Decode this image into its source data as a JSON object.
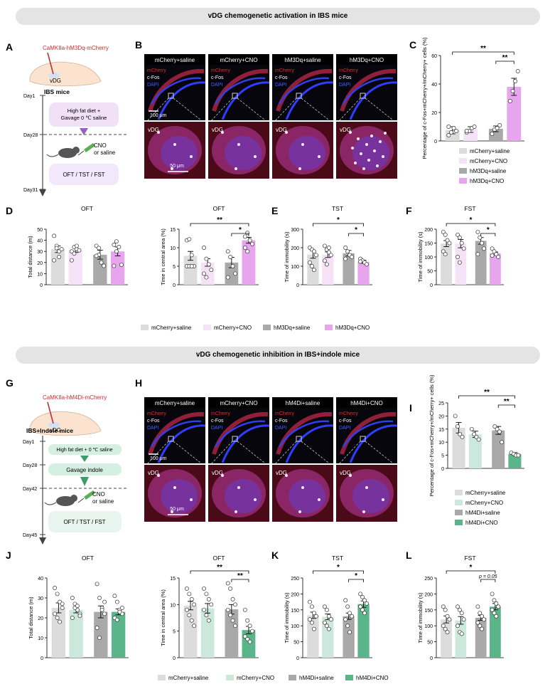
{
  "banners": {
    "top": "vDG chemogenetic activation in IBS mice",
    "bottom": "vDG chemogenetic inhibition in IBS+indole mice"
  },
  "panel_letters": [
    "A",
    "B",
    "C",
    "D",
    "E",
    "F",
    "G",
    "H",
    "I",
    "J",
    "K",
    "L"
  ],
  "colors": {
    "mcherry_saline": "#dcdcdc",
    "mcherry_cno_hm3": "#f6e2f7",
    "hm_saline": "#a9a9a9",
    "hm3dq_cno": "#e7a5ee",
    "mcherry_cno_hm4": "#cce8dc",
    "hm4di_cno": "#5bb58a",
    "virus_label": "#d12a2a",
    "mcherry_text": "#e02b2b",
    "dapi_text": "#3a66ff"
  },
  "schematic_A": {
    "virus": "CaMKIIa-hM3Dq-mCherry",
    "region": "vDG",
    "model": "IBS mice",
    "days": [
      "Day1",
      "Day28",
      "Day31"
    ],
    "step1": "High fat diet +\nGavage 0 ℃ saline",
    "injection": "CNO\nor saline",
    "tests": "OFT / TST / FST"
  },
  "schematic_G": {
    "virus": "CaMKIIa-hM4Di-mCherry",
    "region": "vDG",
    "model": "IBS+Indole mice",
    "days": [
      "Day1",
      "Day28",
      "Day42",
      "Day45"
    ],
    "step1": "High fat diet + 0 ℃ saline",
    "step2": "Gavage indole",
    "injection": "CNO\nor saline",
    "tests": "OFT / TST / FST"
  },
  "micrographs_B": {
    "titles": [
      "mCherry+saline",
      "mCherry+CNO",
      "hM3Dq+saline",
      "hM3Dq+CNO"
    ],
    "channels": [
      "mCherry",
      "c-Fos",
      "DAPI"
    ],
    "zoom_label": "vDG",
    "scale_top": "100 μm",
    "scale_bottom": "50 μm"
  },
  "micrographs_H": {
    "titles": [
      "mCherry+saline",
      "mCherry+CNO",
      "hM4Di+saline",
      "hM4Di+CNO"
    ],
    "channels": [
      "mCherry",
      "c-Fos",
      "DAPI"
    ],
    "zoom_label": "vDG",
    "scale_top": "100 μm",
    "scale_bottom": "50 μm"
  },
  "legend_top": [
    "mCherry+saline",
    "mCherry+CNO",
    "hM3Dq+saline",
    "hM3Dq+CNO"
  ],
  "legend_bottom": [
    "mCherry+saline",
    "mCherry+CNO",
    "hM4Di+saline",
    "hM4Di+CNO"
  ],
  "chart_data": [
    {
      "id": "C",
      "type": "bar",
      "ylabel": "Percentage of c-Fos+mCherry+/mCherry+ cells (%)",
      "ylim": [
        0,
        60
      ],
      "yticks": [
        0,
        20,
        40,
        60
      ],
      "categories": [
        "mCherry+saline",
        "mCherry+CNO",
        "hM3Dq+saline",
        "hM3Dq+CNO"
      ],
      "values": [
        7.5,
        8,
        8.5,
        38
      ],
      "errors": [
        2.5,
        2,
        2,
        6
      ],
      "points": [
        [
          4,
          6,
          9,
          7,
          10
        ],
        [
          6,
          7,
          9,
          10,
          7
        ],
        [
          5,
          8,
          9,
          11
        ],
        [
          28,
          35,
          42,
          49
        ]
      ],
      "significance": [
        "**",
        "**"
      ]
    },
    {
      "id": "D1",
      "type": "bar",
      "title": "OFT",
      "ylabel": "Total distance (m)",
      "ylim": [
        0,
        50
      ],
      "yticks": [
        0,
        10,
        20,
        30,
        40,
        50
      ],
      "categories": [
        "mCherry+saline",
        "mCherry+CNO",
        "hM3Dq+saline",
        "hM3Dq+CNO"
      ],
      "values": [
        32,
        31,
        27,
        30
      ],
      "errors": [
        3,
        2,
        4,
        4
      ],
      "points": [
        [
          44,
          35,
          30,
          32,
          22,
          33,
          25
        ],
        [
          30,
          34,
          32,
          31,
          22,
          28,
          35
        ],
        [
          35,
          27,
          20,
          17,
          26,
          33
        ],
        [
          36,
          30,
          34,
          18,
          17,
          39
        ]
      ]
    },
    {
      "id": "D2",
      "type": "bar",
      "title": "OFT",
      "ylabel": "Time in central area (%)",
      "ylim": [
        0,
        15
      ],
      "yticks": [
        0,
        5,
        10,
        15
      ],
      "categories": [
        "mCherry+saline",
        "mCherry+CNO",
        "hM3Dq+saline",
        "hM3Dq+CNO"
      ],
      "values": [
        7.8,
        6,
        6,
        12
      ],
      "errors": [
        1.2,
        1,
        1.4,
        0.8
      ],
      "points": [
        [
          12,
          12.3,
          8,
          5,
          5,
          5,
          5
        ],
        [
          10,
          7,
          5.5,
          4,
          3,
          2
        ],
        [
          9,
          7.5,
          5,
          3,
          2
        ],
        [
          13,
          14,
          12,
          11,
          10,
          9
        ]
      ],
      "significance": [
        "**",
        "*"
      ]
    },
    {
      "id": "E",
      "type": "bar",
      "title": "TST",
      "ylabel": "Time of immobility (s)",
      "ylim": [
        0,
        300
      ],
      "yticks": [
        0,
        100,
        200,
        300
      ],
      "categories": [
        "mCherry+saline",
        "mCherry+CNO",
        "hM3Dq+saline",
        "hM3Dq+CNO"
      ],
      "values": [
        163,
        162,
        170,
        124
      ],
      "errors": [
        20,
        15,
        15,
        8
      ],
      "points": [
        [
          200,
          190,
          180,
          160,
          120,
          100,
          80
        ],
        [
          210,
          190,
          175,
          160,
          130,
          110,
          200
        ],
        [
          200,
          180,
          160,
          150,
          140
        ],
        [
          140,
          130,
          120,
          110,
          125
        ]
      ],
      "significance": [
        "*",
        "*"
      ]
    },
    {
      "id": "F",
      "type": "bar",
      "title": "FST",
      "ylabel": "Time of immobility (s)",
      "ylim": [
        0,
        200
      ],
      "yticks": [
        0,
        50,
        100,
        150,
        200
      ],
      "categories": [
        "mCherry+saline",
        "mCherry+CNO",
        "hM3Dq+saline",
        "hM3Dq+CNO"
      ],
      "values": [
        148,
        148,
        158,
        113
      ],
      "errors": [
        11,
        15,
        12,
        5
      ],
      "points": [
        [
          190,
          180,
          160,
          150,
          120,
          110
        ],
        [
          180,
          170,
          150,
          130,
          100,
          80
        ],
        [
          190,
          170,
          150,
          130,
          110
        ],
        [
          130,
          120,
          110,
          100,
          105
        ]
      ],
      "significance": [
        "*",
        "*"
      ]
    },
    {
      "id": "I",
      "type": "bar",
      "ylabel": "Percentage of c-Fos+mCherry+/mCherry+ cells (%)",
      "ylim": [
        0,
        25
      ],
      "yticks": [
        0,
        5,
        10,
        15,
        20,
        25
      ],
      "categories": [
        "mCherry+saline",
        "mCherry+CNO",
        "hM4Di+saline",
        "hM4Di+CNO"
      ],
      "values": [
        15.5,
        13,
        14.5,
        5.5
      ],
      "errors": [
        2,
        1.2,
        1.5,
        0.5
      ],
      "points": [
        [
          20,
          16,
          13,
          12
        ],
        [
          15,
          13,
          12,
          11
        ],
        [
          16,
          15,
          14,
          10
        ],
        [
          6,
          5.5,
          5,
          5
        ]
      ],
      "significance": [
        "**",
        "**"
      ]
    },
    {
      "id": "J1",
      "type": "bar",
      "title": "OFT",
      "ylabel": "Total distance (m)",
      "ylim": [
        0,
        40
      ],
      "yticks": [
        0,
        10,
        20,
        30,
        40
      ],
      "categories": [
        "mCherry+saline",
        "mCherry+CNO",
        "hM4Di+saline",
        "hM4Di+CNO"
      ],
      "values": [
        25,
        24,
        23,
        23
      ],
      "errors": [
        2.5,
        1.5,
        3,
        1.5
      ],
      "points": [
        [
          35,
          32,
          28,
          25,
          22,
          20,
          18,
          27
        ],
        [
          30,
          27,
          24,
          22,
          20,
          25,
          26,
          21
        ],
        [
          37,
          30,
          25,
          22,
          15,
          10,
          24,
          28
        ],
        [
          31,
          28,
          24,
          22,
          20,
          19,
          23,
          25
        ]
      ]
    },
    {
      "id": "J2",
      "type": "bar",
      "title": "OFT",
      "ylabel": "Time in central area (%)",
      "ylim": [
        0,
        15
      ],
      "yticks": [
        0,
        5,
        10,
        15
      ],
      "categories": [
        "mCherry+saline",
        "mCherry+CNO",
        "hM4Di+saline",
        "hM4Di+CNO"
      ],
      "values": [
        9.8,
        9.3,
        9.1,
        5.2
      ],
      "errors": [
        0.8,
        0.9,
        0.9,
        0.7
      ],
      "points": [
        [
          13,
          12,
          11,
          10,
          9,
          8,
          7,
          6
        ],
        [
          13,
          12,
          11,
          10,
          9,
          8,
          7
        ],
        [
          14,
          13,
          11,
          10,
          9,
          8,
          7,
          6
        ],
        [
          9,
          7,
          6,
          5,
          4,
          3.5,
          3
        ]
      ],
      "significance": [
        "**",
        "**"
      ]
    },
    {
      "id": "K",
      "type": "bar",
      "title": "TST",
      "ylabel": "Time of immobility (s)",
      "ylim": [
        0,
        250
      ],
      "yticks": [
        0,
        50,
        100,
        150,
        200,
        250
      ],
      "categories": [
        "mCherry+saline",
        "mCherry+CNO",
        "hM4Di+saline",
        "hM4Di+CNO"
      ],
      "values": [
        133,
        128,
        130,
        168
      ],
      "errors": [
        10,
        9,
        10,
        10
      ],
      "points": [
        [
          175,
          160,
          140,
          130,
          120,
          110,
          90
        ],
        [
          160,
          150,
          130,
          120,
          110,
          100,
          90
        ],
        [
          180,
          160,
          140,
          130,
          120,
          100,
          80
        ],
        [
          200,
          190,
          180,
          170,
          160,
          150,
          140
        ]
      ],
      "significance": [
        "*",
        "*"
      ]
    },
    {
      "id": "L",
      "type": "bar",
      "title": "FST",
      "ylabel": "Time of immobility (s)",
      "ylim": [
        0,
        250
      ],
      "yticks": [
        0,
        50,
        100,
        150,
        200,
        250
      ],
      "categories": [
        "mCherry+saline",
        "mCherry+CNO",
        "hM4Di+saline",
        "hM4Di+CNO"
      ],
      "values": [
        120,
        117,
        125,
        160
      ],
      "errors": [
        11,
        12,
        8,
        10
      ],
      "points": [
        [
          160,
          150,
          130,
          120,
          100,
          90,
          80
        ],
        [
          160,
          150,
          140,
          120,
          100,
          80,
          75
        ],
        [
          160,
          140,
          130,
          120,
          110,
          100,
          90
        ],
        [
          200,
          180,
          170,
          160,
          150,
          140,
          130
        ]
      ],
      "significance": [
        "*",
        "p = 0.05"
      ]
    }
  ]
}
